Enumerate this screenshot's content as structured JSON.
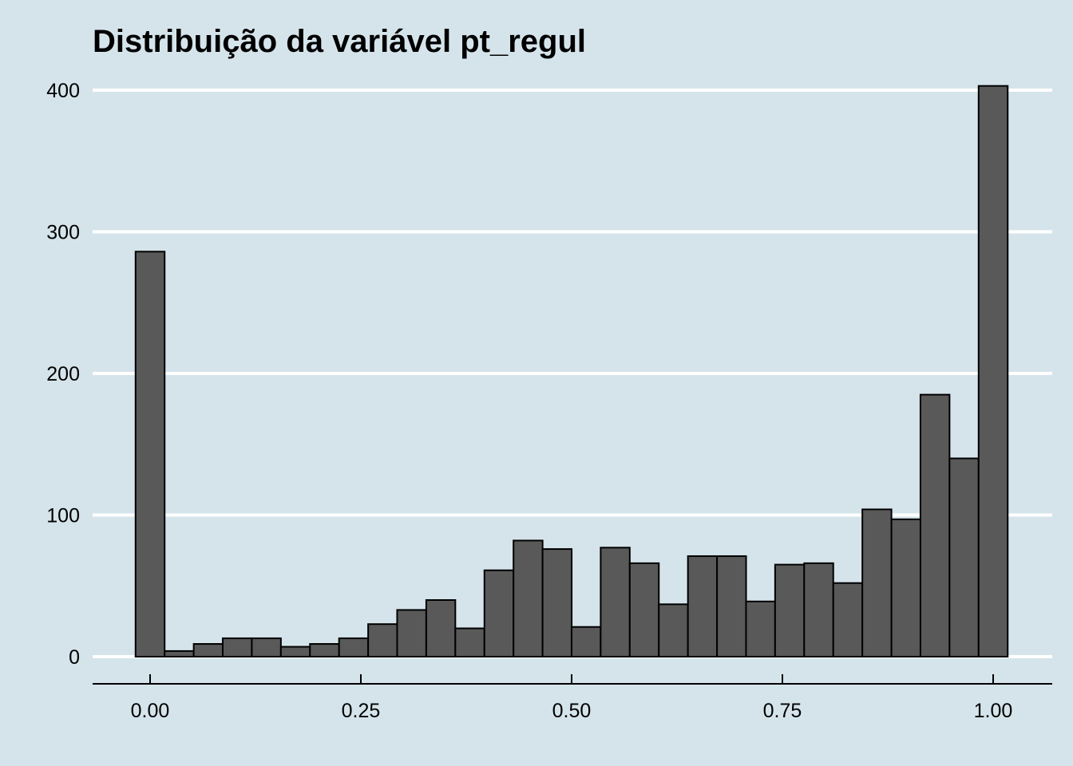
{
  "chart_data": {
    "type": "bar",
    "title": "Distribuição da variável pt_regul",
    "xlabel": "",
    "ylabel": "",
    "xlim": [
      -0.05,
      1.05
    ],
    "ylim": [
      0,
      420
    ],
    "x_ticks": [
      0,
      0.25,
      0.5,
      0.75,
      1
    ],
    "x_tick_labels": [
      "0.00",
      "0.25",
      "0.50",
      "0.75",
      "1.00"
    ],
    "y_ticks": [
      0,
      100,
      200,
      300,
      400
    ],
    "y_tick_labels": [
      "0",
      "100",
      "200",
      "300",
      "400"
    ],
    "grid": "horizontal",
    "bar_color": "#595959",
    "bar_outline": "#000000",
    "background": "#d5e4eb",
    "binwidth": 0.0345,
    "x": [
      0.0,
      0.0345,
      0.069,
      0.1034,
      0.1379,
      0.1724,
      0.2069,
      0.2414,
      0.2759,
      0.3103,
      0.3448,
      0.3793,
      0.4138,
      0.4483,
      0.4828,
      0.5172,
      0.5517,
      0.5862,
      0.6207,
      0.6552,
      0.6897,
      0.7241,
      0.7586,
      0.7931,
      0.8276,
      0.8621,
      0.8966,
      0.931,
      0.9655,
      1.0
    ],
    "values": [
      286,
      4,
      9,
      13,
      13,
      7,
      9,
      13,
      23,
      33,
      40,
      20,
      61,
      82,
      76,
      21,
      77,
      66,
      37,
      71,
      71,
      39,
      65,
      66,
      52,
      104,
      97,
      185,
      140,
      403
    ]
  }
}
